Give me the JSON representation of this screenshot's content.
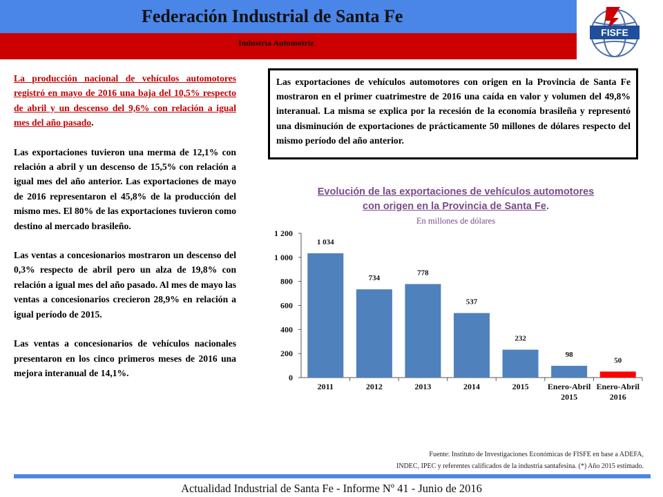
{
  "header": {
    "title": "Federación Industrial de Santa Fe",
    "subtitle": "Industria Automotriz",
    "logo_text": "FISFE"
  },
  "left_text": {
    "p1_underlined": "La producción nacional de vehículos automotores registró en mayo de 2016 una baja del 10,5% respecto de abril y un descenso del 9,6% con relación a igual mes del año pasado",
    "p1_end": ".",
    "p2": "Las exportaciones tuvieron una merma de 12,1% con relación a abril y un descenso de 15,5% con relación a igual mes del año anterior. Las exportaciones de mayo de 2016 representaron el 45,8% de la producción del mismo mes.  El 80% de las exportaciones tuvieron como destino al mercado brasileño.",
    "p3": "Las ventas a concesionarios mostraron un descenso del 0,3% respecto de abril pero un alza de 19,8% con relación a igual mes del año pasado. Al mes de mayo las ventas a concesionarios crecieron 28,9% en relación a igual período de 2015.",
    "p4": "Las ventas a concesionarios de vehículos nacionales presentaron en los cinco primeros meses de 2016 una mejora interanual de 14,1%."
  },
  "box_text": "Las exportaciones de vehículos automotores con origen en la Provincia de Santa Fe mostraron en el primer cuatrimestre de 2016 una caída en valor y volumen del 49,8% interanual. La misma se explica por la recesión de la economía brasileña y representó una disminución de exportaciones de prácticamente 50 millones de dólares respecto del mismo período del año anterior.",
  "chart_data": {
    "type": "bar",
    "title_line1": "Evolución de las exportaciones de vehículos automotores",
    "title_line2": "con origen en la Provincia de Santa Fe",
    "title_end": ".",
    "subtitle": "En millones de dólares",
    "categories": [
      "2011",
      "2012",
      "2013",
      "2014",
      "2015",
      "Enero-Abril 2015",
      "Enero-Abril 2016"
    ],
    "values": [
      1034,
      734,
      778,
      537,
      232,
      98,
      50
    ],
    "value_labels": [
      "1 034",
      "734",
      "778",
      "537",
      "232",
      "98",
      "50"
    ],
    "ylim": [
      0,
      1200
    ],
    "yticks": [
      0,
      200,
      400,
      600,
      800,
      1000,
      1200
    ],
    "ytick_labels": [
      "0",
      "200",
      "400",
      "600",
      "800",
      "1 000",
      "1 200"
    ],
    "grid": false,
    "colors": {
      "bar": "#4f81bd",
      "highlight": "#ff0000"
    },
    "highlight_index": 6
  },
  "source": {
    "line1": "Fuente: Instituto de Investigaciones Económicas de FISFE en base a ADEFA,",
    "line2": "INDEC, IPEC y referentes calificados de la industria santafesina. (*) Año 2015 estimado."
  },
  "footer": "Actualidad Industrial de Santa Fe - Informe Nº 41 - Junio de 2016"
}
